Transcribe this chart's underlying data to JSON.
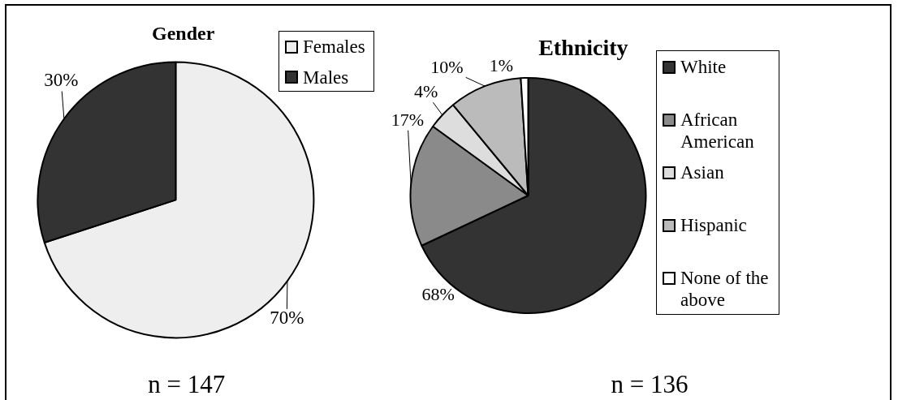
{
  "chart_data": [
    {
      "type": "pie",
      "title": "Gender",
      "categories": [
        "Females",
        "Males"
      ],
      "values": [
        70,
        30
      ],
      "colors": [
        "#eeeeee",
        "#333333"
      ],
      "value_labels": [
        "70%",
        "30%"
      ],
      "legend": "top right",
      "annotations": [
        "n = 147"
      ]
    },
    {
      "type": "pie",
      "title": "Ethnicity",
      "categories": [
        "White",
        "African American",
        "Asian",
        "Hispanic",
        "None of the above"
      ],
      "values": [
        68,
        17,
        4,
        10,
        1
      ],
      "colors": [
        "#333333",
        "#8a8a8a",
        "#dddddd",
        "#bbbbbb",
        "#ffffff"
      ],
      "value_labels": [
        "68%",
        "17%",
        "4%",
        "10%",
        "1%"
      ],
      "legend": "right",
      "annotations": [
        "n = 136"
      ]
    }
  ]
}
